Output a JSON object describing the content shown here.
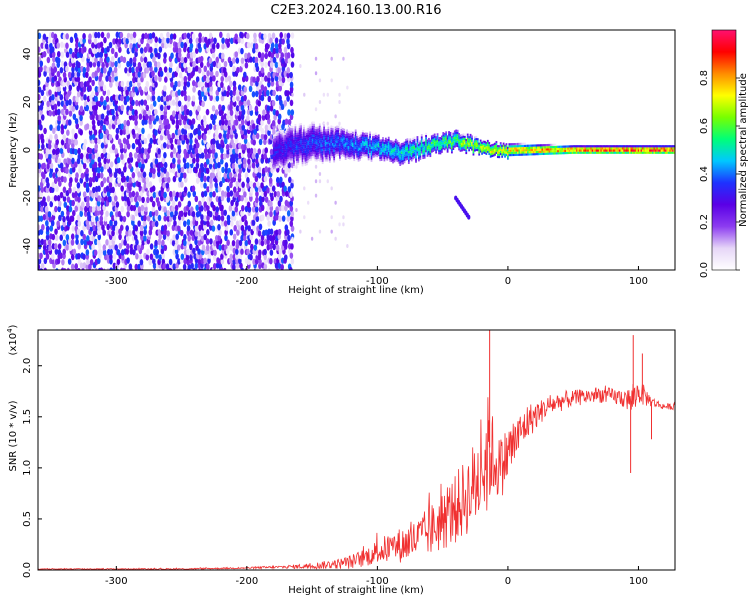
{
  "figure": {
    "title": "C2E3.2024.160.13.00.R16"
  },
  "chart_data": [
    {
      "type": "heatmap",
      "xlabel": "Height of straight line (km)",
      "ylabel": "Frequency (Hz)",
      "xlim": [
        -360,
        128
      ],
      "ylim": [
        -50,
        50
      ],
      "x_ticks": [
        -300,
        -200,
        -100,
        0,
        100
      ],
      "x_tick_labels": [
        "-300",
        "-200",
        "-100",
        "0",
        "100"
      ],
      "y_ticks": [
        -40,
        -20,
        0,
        20,
        40
      ],
      "y_tick_labels": [
        "-40",
        "-20",
        "0",
        "20",
        "40"
      ],
      "colorbar": {
        "label": "Normalized spectral amplitude",
        "range": [
          0.0,
          1.0
        ],
        "ticks": [
          0.0,
          0.2,
          0.4,
          0.6,
          0.8
        ],
        "tick_labels": [
          "0.0",
          "0.2",
          "0.4",
          "0.6",
          "0.8"
        ],
        "colormap": [
          "#ffffff",
          "#e6d6f7",
          "#8c3cf0",
          "#5a00e6",
          "#1e32ff",
          "#00c8ff",
          "#00ff78",
          "#78ff00",
          "#ffff00",
          "#ff8c00",
          "#ff0000",
          "#ff1070"
        ]
      },
      "ridge": {
        "x": [
          -180,
          -150,
          -120,
          -100,
          -80,
          -60,
          -40,
          -20,
          0,
          50,
          100,
          128
        ],
        "freq": [
          0,
          3,
          2,
          1,
          -1,
          2,
          4,
          1,
          0,
          0,
          0,
          0
        ],
        "halfwidth": [
          8,
          8,
          6,
          5,
          5,
          4,
          4,
          3,
          3,
          2,
          2,
          2
        ],
        "amplitude": [
          0.35,
          0.4,
          0.45,
          0.5,
          0.55,
          0.6,
          0.65,
          0.75,
          0.8,
          0.9,
          0.95,
          0.95
        ]
      },
      "diffuse_region": {
        "x_from": -360,
        "x_to": -165,
        "freq_range": [
          -50,
          50
        ],
        "amplitude": [
          0.05,
          0.4
        ]
      },
      "diffuse_tail": {
        "x": [
          -40,
          -30
        ],
        "freq": [
          -20,
          -28
        ],
        "amplitude": 0.3
      },
      "grid": false
    },
    {
      "type": "line",
      "xlabel": "Height of straight line (km)",
      "ylabel": "SNR (10 * v/v)",
      "y_multiplier_label": "(x10",
      "y_multiplier_exponent": "4",
      "y_multiplier_close": ")",
      "xlim": [
        -360,
        128
      ],
      "ylim": [
        0,
        2.35
      ],
      "x_ticks": [
        -300,
        -200,
        -100,
        0,
        100
      ],
      "x_tick_labels": [
        "-300",
        "-200",
        "-100",
        "0",
        "100"
      ],
      "y_ticks": [
        0.0,
        0.5,
        1.0,
        1.5,
        2.0
      ],
      "y_tick_labels": [
        "0.0",
        "0.5",
        "1.0",
        "1.5",
        "2.0"
      ],
      "line_color": "#f03030",
      "series": [
        {
          "x": [
            -360,
            -300,
            -250,
            -200,
            -170,
            -150,
            -130,
            -120,
            -110,
            -100,
            -90,
            -80,
            -70,
            -60,
            -50,
            -40,
            -30,
            -25,
            -20,
            -16,
            -14,
            -10,
            -5,
            0,
            5,
            10,
            15,
            20,
            25,
            30,
            40,
            50,
            60,
            70,
            80,
            90,
            95,
            100,
            105,
            110,
            115,
            120,
            128
          ],
          "y": [
            0.01,
            0.01,
            0.01,
            0.02,
            0.03,
            0.04,
            0.06,
            0.08,
            0.12,
            0.18,
            0.22,
            0.25,
            0.3,
            0.38,
            0.48,
            0.6,
            0.75,
            0.85,
            0.95,
            1.1,
            1.2,
            1.05,
            1.0,
            1.15,
            1.25,
            1.35,
            1.45,
            1.5,
            1.55,
            1.6,
            1.65,
            1.68,
            1.7,
            1.72,
            1.7,
            1.68,
            1.65,
            1.75,
            1.7,
            1.65,
            1.62,
            1.6,
            1.6
          ],
          "noise": [
            0.005,
            0.005,
            0.006,
            0.008,
            0.015,
            0.03,
            0.05,
            0.07,
            0.09,
            0.12,
            0.15,
            0.18,
            0.2,
            0.25,
            0.3,
            0.35,
            0.4,
            0.45,
            0.5,
            0.6,
            0.55,
            0.35,
            0.3,
            0.3,
            0.25,
            0.2,
            0.18,
            0.15,
            0.12,
            0.1,
            0.1,
            0.08,
            0.08,
            0.08,
            0.08,
            0.1,
            0.15,
            0.12,
            0.1,
            0.05,
            0.04,
            0.03,
            0.03
          ]
        }
      ],
      "spikes": [
        {
          "x": -14,
          "y": 2.35
        },
        {
          "x": 96,
          "y": 2.3
        },
        {
          "x": 94,
          "y": 0.95
        },
        {
          "x": 103,
          "y": 2.12
        },
        {
          "x": 110,
          "y": 1.28
        }
      ],
      "grid": false
    }
  ]
}
